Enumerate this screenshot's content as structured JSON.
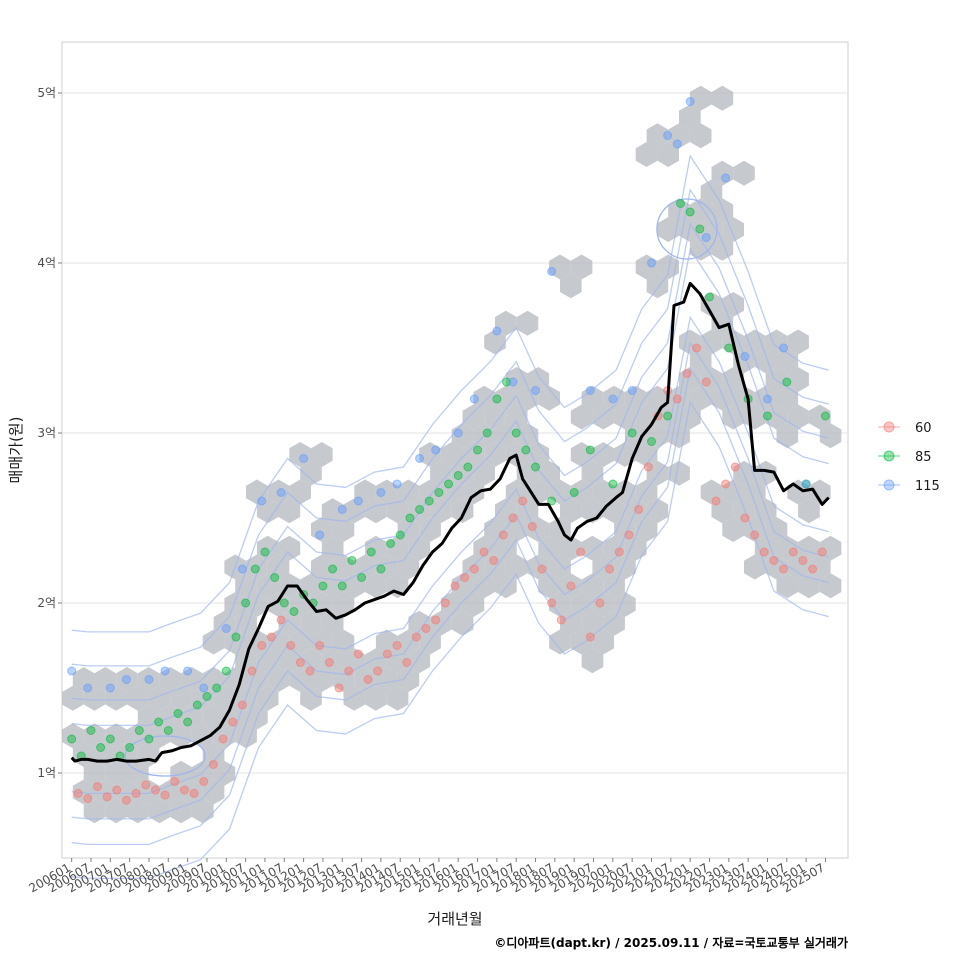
{
  "chart_data": {
    "type": "scatter",
    "title": "",
    "xlabel": "거래년월",
    "ylabel": "매매가(원)",
    "x_tick_labels": [
      "200601",
      "200607",
      "200701",
      "200707",
      "200801",
      "200807",
      "200901",
      "200907",
      "201001",
      "201007",
      "201101",
      "201107",
      "201201",
      "201207",
      "201301",
      "201307",
      "201401",
      "201407",
      "201501",
      "201507",
      "201601",
      "201607",
      "201701",
      "201707",
      "201801",
      "201807",
      "201901",
      "201907",
      "202001",
      "202007",
      "202101",
      "202107",
      "202201",
      "202207",
      "202301",
      "202307",
      "202401",
      "202407",
      "202501",
      "202507"
    ],
    "y_ticks": [
      1,
      2,
      3,
      4,
      5
    ],
    "y_tick_labels": [
      "1억",
      "2억",
      "3억",
      "4억",
      "5억"
    ],
    "ylim": [
      0.5,
      5.3
    ],
    "xlim": [
      "2005-10",
      "2026-02"
    ],
    "grid": true,
    "legend_position": "right",
    "legend_title": "",
    "series": [
      {
        "name": "60",
        "color": "#F8766D",
        "points": [
          [
            "2006-03",
            0.88
          ],
          [
            "2006-06",
            0.85
          ],
          [
            "2006-09",
            0.92
          ],
          [
            "2006-12",
            0.86
          ],
          [
            "2007-03",
            0.9
          ],
          [
            "2007-06",
            0.84
          ],
          [
            "2007-09",
            0.88
          ],
          [
            "2007-12",
            0.93
          ],
          [
            "2008-03",
            0.9
          ],
          [
            "2008-06",
            0.87
          ],
          [
            "2008-09",
            0.95
          ],
          [
            "2008-12",
            0.9
          ],
          [
            "2009-03",
            0.88
          ],
          [
            "2009-06",
            0.95
          ],
          [
            "2009-09",
            1.05
          ],
          [
            "2009-12",
            1.2
          ],
          [
            "2010-03",
            1.3
          ],
          [
            "2010-06",
            1.4
          ],
          [
            "2010-09",
            1.6
          ],
          [
            "2010-12",
            1.75
          ],
          [
            "2011-03",
            1.8
          ],
          [
            "2011-06",
            1.9
          ],
          [
            "2011-09",
            1.75
          ],
          [
            "2011-12",
            1.65
          ],
          [
            "2012-03",
            1.6
          ],
          [
            "2012-06",
            1.75
          ],
          [
            "2012-09",
            1.65
          ],
          [
            "2012-12",
            1.5
          ],
          [
            "2013-03",
            1.6
          ],
          [
            "2013-06",
            1.7
          ],
          [
            "2013-09",
            1.55
          ],
          [
            "2013-12",
            1.6
          ],
          [
            "2014-03",
            1.7
          ],
          [
            "2014-06",
            1.75
          ],
          [
            "2014-09",
            1.65
          ],
          [
            "2014-12",
            1.8
          ],
          [
            "2015-03",
            1.85
          ],
          [
            "2015-06",
            1.9
          ],
          [
            "2015-09",
            2.0
          ],
          [
            "2015-12",
            2.1
          ],
          [
            "2016-03",
            2.15
          ],
          [
            "2016-06",
            2.2
          ],
          [
            "2016-09",
            2.3
          ],
          [
            "2016-12",
            2.25
          ],
          [
            "2017-03",
            2.4
          ],
          [
            "2017-06",
            2.5
          ],
          [
            "2017-09",
            2.6
          ],
          [
            "2017-12",
            2.45
          ],
          [
            "2018-03",
            2.2
          ],
          [
            "2018-06",
            2.0
          ],
          [
            "2018-09",
            1.9
          ],
          [
            "2018-12",
            2.1
          ],
          [
            "2019-03",
            2.3
          ],
          [
            "2019-06",
            1.8
          ],
          [
            "2019-09",
            2.0
          ],
          [
            "2019-12",
            2.2
          ],
          [
            "2020-03",
            2.3
          ],
          [
            "2020-06",
            2.4
          ],
          [
            "2020-09",
            2.55
          ],
          [
            "2020-12",
            2.8
          ],
          [
            "2021-03",
            3.1
          ],
          [
            "2021-06",
            3.25
          ],
          [
            "2021-09",
            3.2
          ],
          [
            "2021-12",
            3.35
          ],
          [
            "2022-03",
            3.5
          ],
          [
            "2022-06",
            3.3
          ],
          [
            "2022-09",
            2.6
          ],
          [
            "2022-12",
            2.7
          ],
          [
            "2023-03",
            2.8
          ],
          [
            "2023-06",
            2.5
          ],
          [
            "2023-09",
            2.4
          ],
          [
            "2023-12",
            2.3
          ],
          [
            "2024-03",
            2.25
          ],
          [
            "2024-06",
            2.2
          ],
          [
            "2024-09",
            2.3
          ],
          [
            "2024-12",
            2.25
          ],
          [
            "2025-03",
            2.2
          ],
          [
            "2025-06",
            2.3
          ]
        ]
      },
      {
        "name": "85",
        "color": "#00BA38",
        "points": [
          [
            "2006-01",
            1.2
          ],
          [
            "2006-04",
            1.1
          ],
          [
            "2006-07",
            1.25
          ],
          [
            "2006-10",
            1.15
          ],
          [
            "2007-01",
            1.2
          ],
          [
            "2007-04",
            1.1
          ],
          [
            "2007-07",
            1.15
          ],
          [
            "2007-10",
            1.25
          ],
          [
            "2008-01",
            1.2
          ],
          [
            "2008-04",
            1.3
          ],
          [
            "2008-07",
            1.25
          ],
          [
            "2008-10",
            1.35
          ],
          [
            "2009-01",
            1.3
          ],
          [
            "2009-04",
            1.4
          ],
          [
            "2009-07",
            1.45
          ],
          [
            "2009-10",
            1.5
          ],
          [
            "2010-01",
            1.6
          ],
          [
            "2010-04",
            1.8
          ],
          [
            "2010-07",
            2.0
          ],
          [
            "2010-10",
            2.2
          ],
          [
            "2011-01",
            2.3
          ],
          [
            "2011-04",
            2.15
          ],
          [
            "2011-07",
            2.0
          ],
          [
            "2011-10",
            1.95
          ],
          [
            "2012-01",
            2.05
          ],
          [
            "2012-04",
            2.0
          ],
          [
            "2012-07",
            2.1
          ],
          [
            "2012-10",
            2.2
          ],
          [
            "2013-01",
            2.1
          ],
          [
            "2013-04",
            2.25
          ],
          [
            "2013-07",
            2.15
          ],
          [
            "2013-10",
            2.3
          ],
          [
            "2014-01",
            2.2
          ],
          [
            "2014-04",
            2.35
          ],
          [
            "2014-07",
            2.4
          ],
          [
            "2014-10",
            2.5
          ],
          [
            "2015-01",
            2.55
          ],
          [
            "2015-04",
            2.6
          ],
          [
            "2015-07",
            2.65
          ],
          [
            "2015-10",
            2.7
          ],
          [
            "2016-01",
            2.75
          ],
          [
            "2016-04",
            2.8
          ],
          [
            "2016-07",
            2.9
          ],
          [
            "2016-10",
            3.0
          ],
          [
            "2017-01",
            3.2
          ],
          [
            "2017-04",
            3.3
          ],
          [
            "2017-07",
            3.0
          ],
          [
            "2017-10",
            2.9
          ],
          [
            "2018-01",
            2.8
          ],
          [
            "2018-06",
            2.6
          ],
          [
            "2019-01",
            2.65
          ],
          [
            "2019-06",
            2.9
          ],
          [
            "2020-01",
            2.7
          ],
          [
            "2020-07",
            3.0
          ],
          [
            "2021-01",
            2.95
          ],
          [
            "2021-06",
            3.1
          ],
          [
            "2021-10",
            4.35
          ],
          [
            "2022-01",
            4.3
          ],
          [
            "2022-04",
            4.2
          ],
          [
            "2022-07",
            3.8
          ],
          [
            "2023-01",
            3.5
          ],
          [
            "2023-07",
            3.2
          ],
          [
            "2024-01",
            3.1
          ],
          [
            "2024-07",
            3.3
          ],
          [
            "2025-01",
            2.7
          ],
          [
            "2025-07",
            3.1
          ]
        ]
      },
      {
        "name": "115",
        "color": "#619CFF",
        "points": [
          [
            "2006-01",
            1.6
          ],
          [
            "2006-06",
            1.5
          ],
          [
            "2007-01",
            1.5
          ],
          [
            "2007-06",
            1.55
          ],
          [
            "2008-01",
            1.55
          ],
          [
            "2008-06",
            1.6
          ],
          [
            "2009-01",
            1.6
          ],
          [
            "2009-06",
            1.5
          ],
          [
            "2010-01",
            1.85
          ],
          [
            "2010-06",
            2.2
          ],
          [
            "2010-12",
            2.6
          ],
          [
            "2011-06",
            2.65
          ],
          [
            "2012-01",
            2.85
          ],
          [
            "2012-06",
            2.4
          ],
          [
            "2013-01",
            2.55
          ],
          [
            "2013-06",
            2.6
          ],
          [
            "2014-01",
            2.65
          ],
          [
            "2014-06",
            2.7
          ],
          [
            "2015-01",
            2.85
          ],
          [
            "2015-06",
            2.9
          ],
          [
            "2016-01",
            3.0
          ],
          [
            "2016-06",
            3.2
          ],
          [
            "2017-01",
            3.6
          ],
          [
            "2017-06",
            3.3
          ],
          [
            "2018-01",
            3.25
          ],
          [
            "2018-06",
            3.95
          ],
          [
            "2019-06",
            3.25
          ],
          [
            "2020-01",
            3.2
          ],
          [
            "2020-07",
            3.25
          ],
          [
            "2021-01",
            4.0
          ],
          [
            "2021-06",
            4.75
          ],
          [
            "2021-09",
            4.7
          ],
          [
            "2022-01",
            4.95
          ],
          [
            "2022-06",
            4.15
          ],
          [
            "2022-12",
            4.5
          ],
          [
            "2023-06",
            3.45
          ],
          [
            "2024-01",
            3.2
          ],
          [
            "2024-06",
            3.5
          ],
          [
            "2025-01",
            2.7
          ]
        ]
      }
    ],
    "median_line": {
      "color": "#000000",
      "points": [
        [
          "2006-01",
          1.09
        ],
        [
          "2006-02",
          1.07
        ],
        [
          "2006-04",
          1.08
        ],
        [
          "2006-06",
          1.08
        ],
        [
          "2006-09",
          1.07
        ],
        [
          "2006-12",
          1.07
        ],
        [
          "2007-03",
          1.08
        ],
        [
          "2007-06",
          1.07
        ],
        [
          "2007-09",
          1.07
        ],
        [
          "2008-01",
          1.08
        ],
        [
          "2008-03",
          1.07
        ],
        [
          "2008-05",
          1.12
        ],
        [
          "2008-08",
          1.13
        ],
        [
          "2008-11",
          1.15
        ],
        [
          "2009-02",
          1.16
        ],
        [
          "2009-05",
          1.19
        ],
        [
          "2009-08",
          1.22
        ],
        [
          "2009-11",
          1.27
        ],
        [
          "2010-02",
          1.37
        ],
        [
          "2010-05",
          1.52
        ],
        [
          "2010-08",
          1.73
        ],
        [
          "2010-11",
          1.85
        ],
        [
          "2011-02",
          1.98
        ],
        [
          "2011-05",
          2.01
        ],
        [
          "2011-08",
          2.1
        ],
        [
          "2011-11",
          2.1
        ],
        [
          "2012-02",
          2.02
        ],
        [
          "2012-05",
          1.95
        ],
        [
          "2012-08",
          1.96
        ],
        [
          "2012-11",
          1.91
        ],
        [
          "2013-02",
          1.93
        ],
        [
          "2013-05",
          1.96
        ],
        [
          "2013-08",
          2.0
        ],
        [
          "2013-11",
          2.02
        ],
        [
          "2014-02",
          2.04
        ],
        [
          "2014-05",
          2.07
        ],
        [
          "2014-08",
          2.05
        ],
        [
          "2014-11",
          2.12
        ],
        [
          "2015-02",
          2.22
        ],
        [
          "2015-05",
          2.3
        ],
        [
          "2015-08",
          2.35
        ],
        [
          "2015-11",
          2.44
        ],
        [
          "2016-02",
          2.5
        ],
        [
          "2016-05",
          2.62
        ],
        [
          "2016-08",
          2.66
        ],
        [
          "2016-11",
          2.67
        ],
        [
          "2017-02",
          2.73
        ],
        [
          "2017-05",
          2.85
        ],
        [
          "2017-07",
          2.87
        ],
        [
          "2017-09",
          2.73
        ],
        [
          "2017-11",
          2.67
        ],
        [
          "2018-02",
          2.58
        ],
        [
          "2018-05",
          2.58
        ],
        [
          "2018-08",
          2.48
        ],
        [
          "2018-10",
          2.4
        ],
        [
          "2018-12",
          2.37
        ],
        [
          "2019-02",
          2.44
        ],
        [
          "2019-05",
          2.48
        ],
        [
          "2019-08",
          2.5
        ],
        [
          "2019-11",
          2.57
        ],
        [
          "2020-02",
          2.62
        ],
        [
          "2020-04",
          2.65
        ],
        [
          "2020-07",
          2.85
        ],
        [
          "2020-10",
          2.98
        ],
        [
          "2021-01",
          3.05
        ],
        [
          "2021-04",
          3.15
        ],
        [
          "2021-06",
          3.18
        ],
        [
          "2021-08",
          3.75
        ],
        [
          "2021-11",
          3.77
        ],
        [
          "2022-01",
          3.88
        ],
        [
          "2022-04",
          3.82
        ],
        [
          "2022-07",
          3.72
        ],
        [
          "2022-10",
          3.62
        ],
        [
          "2023-01",
          3.64
        ],
        [
          "2023-04",
          3.4
        ],
        [
          "2023-07",
          3.2
        ],
        [
          "2023-09",
          2.78
        ],
        [
          "2023-12",
          2.78
        ],
        [
          "2024-03",
          2.77
        ],
        [
          "2024-06",
          2.66
        ],
        [
          "2024-09",
          2.7
        ],
        [
          "2024-12",
          2.66
        ],
        [
          "2025-03",
          2.67
        ],
        [
          "2025-06",
          2.58
        ],
        [
          "2025-08",
          2.62
        ]
      ]
    }
  },
  "caption": "©디아파트(dapt.kr) / 2025.09.11 / 자료=국토교통부 실거래가"
}
